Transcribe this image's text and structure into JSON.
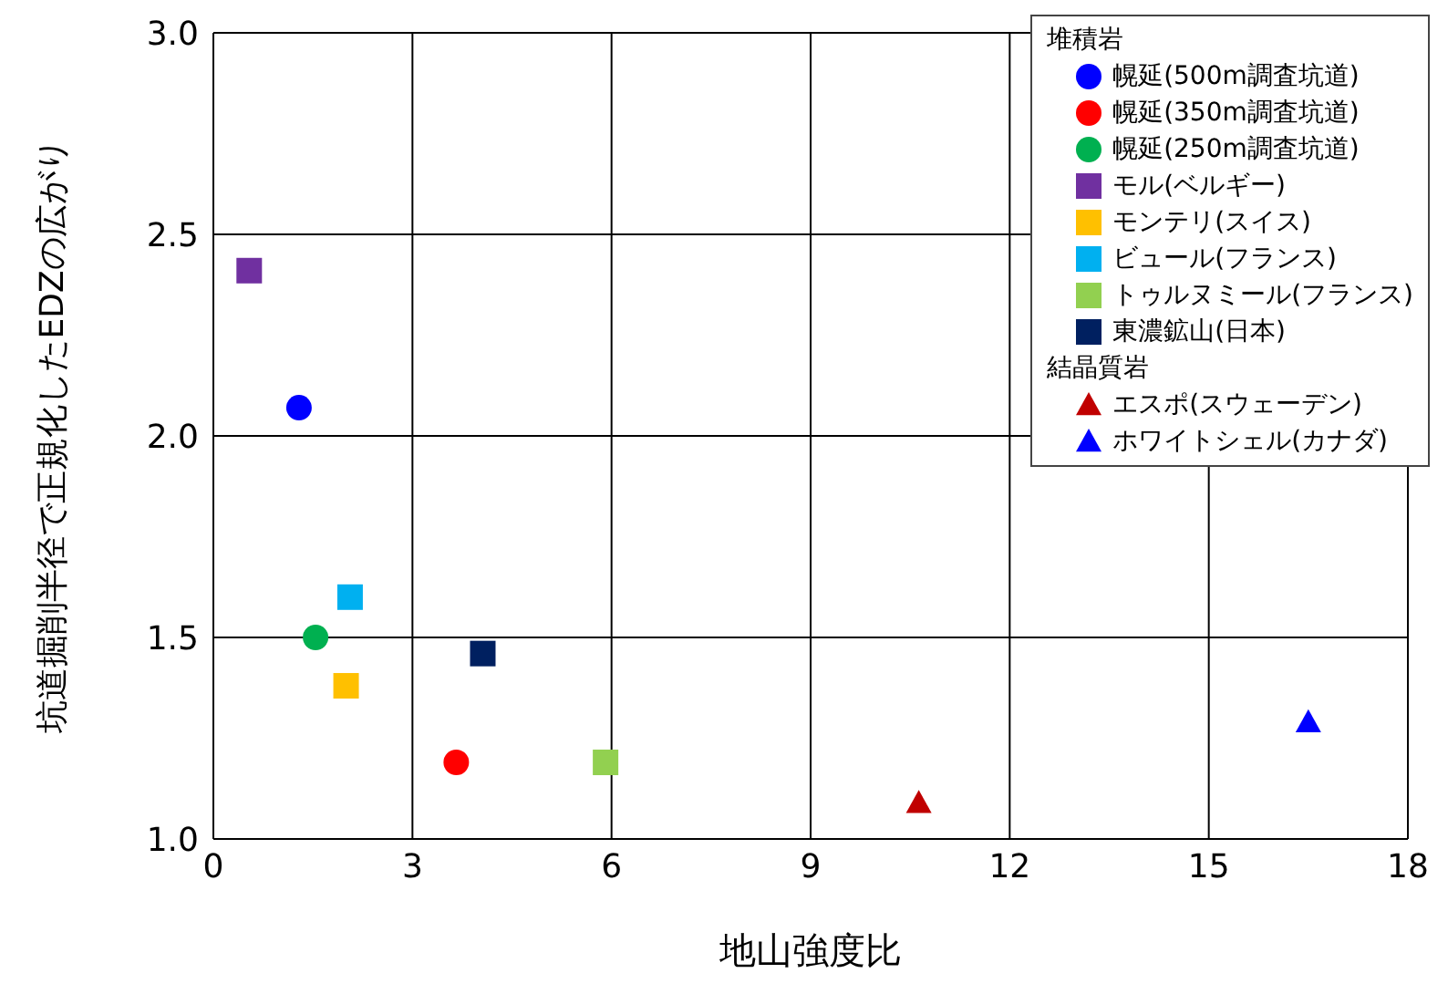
{
  "chart_data": {
    "type": "scatter",
    "xlabel": "地山強度比",
    "ylabel": "坑道掘削半径で正規化したEDZの広がり",
    "legend_title": "堆積岩",
    "annotations": [
      "結晶質岩"
    ],
    "xlim": [
      0,
      18
    ],
    "xticks": [
      0,
      3,
      6,
      9,
      12,
      15,
      18
    ],
    "ylim": [
      1,
      3
    ],
    "yticks": [
      {
        "value": 1,
        "label": "1.0"
      },
      1.5,
      {
        "value": 2,
        "label": "2.0"
      },
      2.5,
      {
        "value": 3,
        "label": "3.0"
      }
    ],
    "grid": true,
    "legend": "top right",
    "series": [
      {
        "name": "幌延(500m調査坑道)",
        "color": "#0000ff",
        "marker": "circle",
        "x": [
          1.29
        ],
        "values": [
          2.07
        ]
      },
      {
        "name": "幌延(350m調査坑道)",
        "color": "#ff0000",
        "marker": "circle",
        "x": [
          3.66
        ],
        "values": [
          1.19
        ]
      },
      {
        "name": "幌延(250m調査坑道)",
        "color": "#00b050",
        "marker": "circle",
        "x": [
          1.54
        ],
        "values": [
          1.5
        ]
      },
      {
        "name": "モル(ベルギー)",
        "color": "#7030a0",
        "marker": "square",
        "x": [
          0.54
        ],
        "values": [
          2.41
        ]
      },
      {
        "name": "モンテリ(スイス)",
        "color": "#ffc000",
        "marker": "square",
        "x": [
          2.0
        ],
        "values": [
          1.38
        ]
      },
      {
        "name": "ビュール(フランス)",
        "color": "#00b0f0",
        "marker": "square",
        "x": [
          2.06
        ],
        "values": [
          1.6
        ]
      },
      {
        "name": "トゥルヌミール(フランス)",
        "color": "#92d050",
        "marker": "square",
        "x": [
          5.91
        ],
        "values": [
          1.19
        ]
      },
      {
        "name": "東濃鉱山(日本)",
        "color": "#002060",
        "marker": "square",
        "x": [
          4.06
        ],
        "values": [
          1.46
        ]
      },
      {
        "name": "エスポ(スウェーデン)",
        "color": "#c00000",
        "marker": "triangle",
        "x": [
          10.63
        ],
        "values": [
          1.09
        ]
      },
      {
        "name": "ホワイトシェル(カナダ)",
        "color": "#0000ff",
        "marker": "triangle",
        "x": [
          16.5
        ],
        "values": [
          1.29
        ]
      }
    ]
  }
}
